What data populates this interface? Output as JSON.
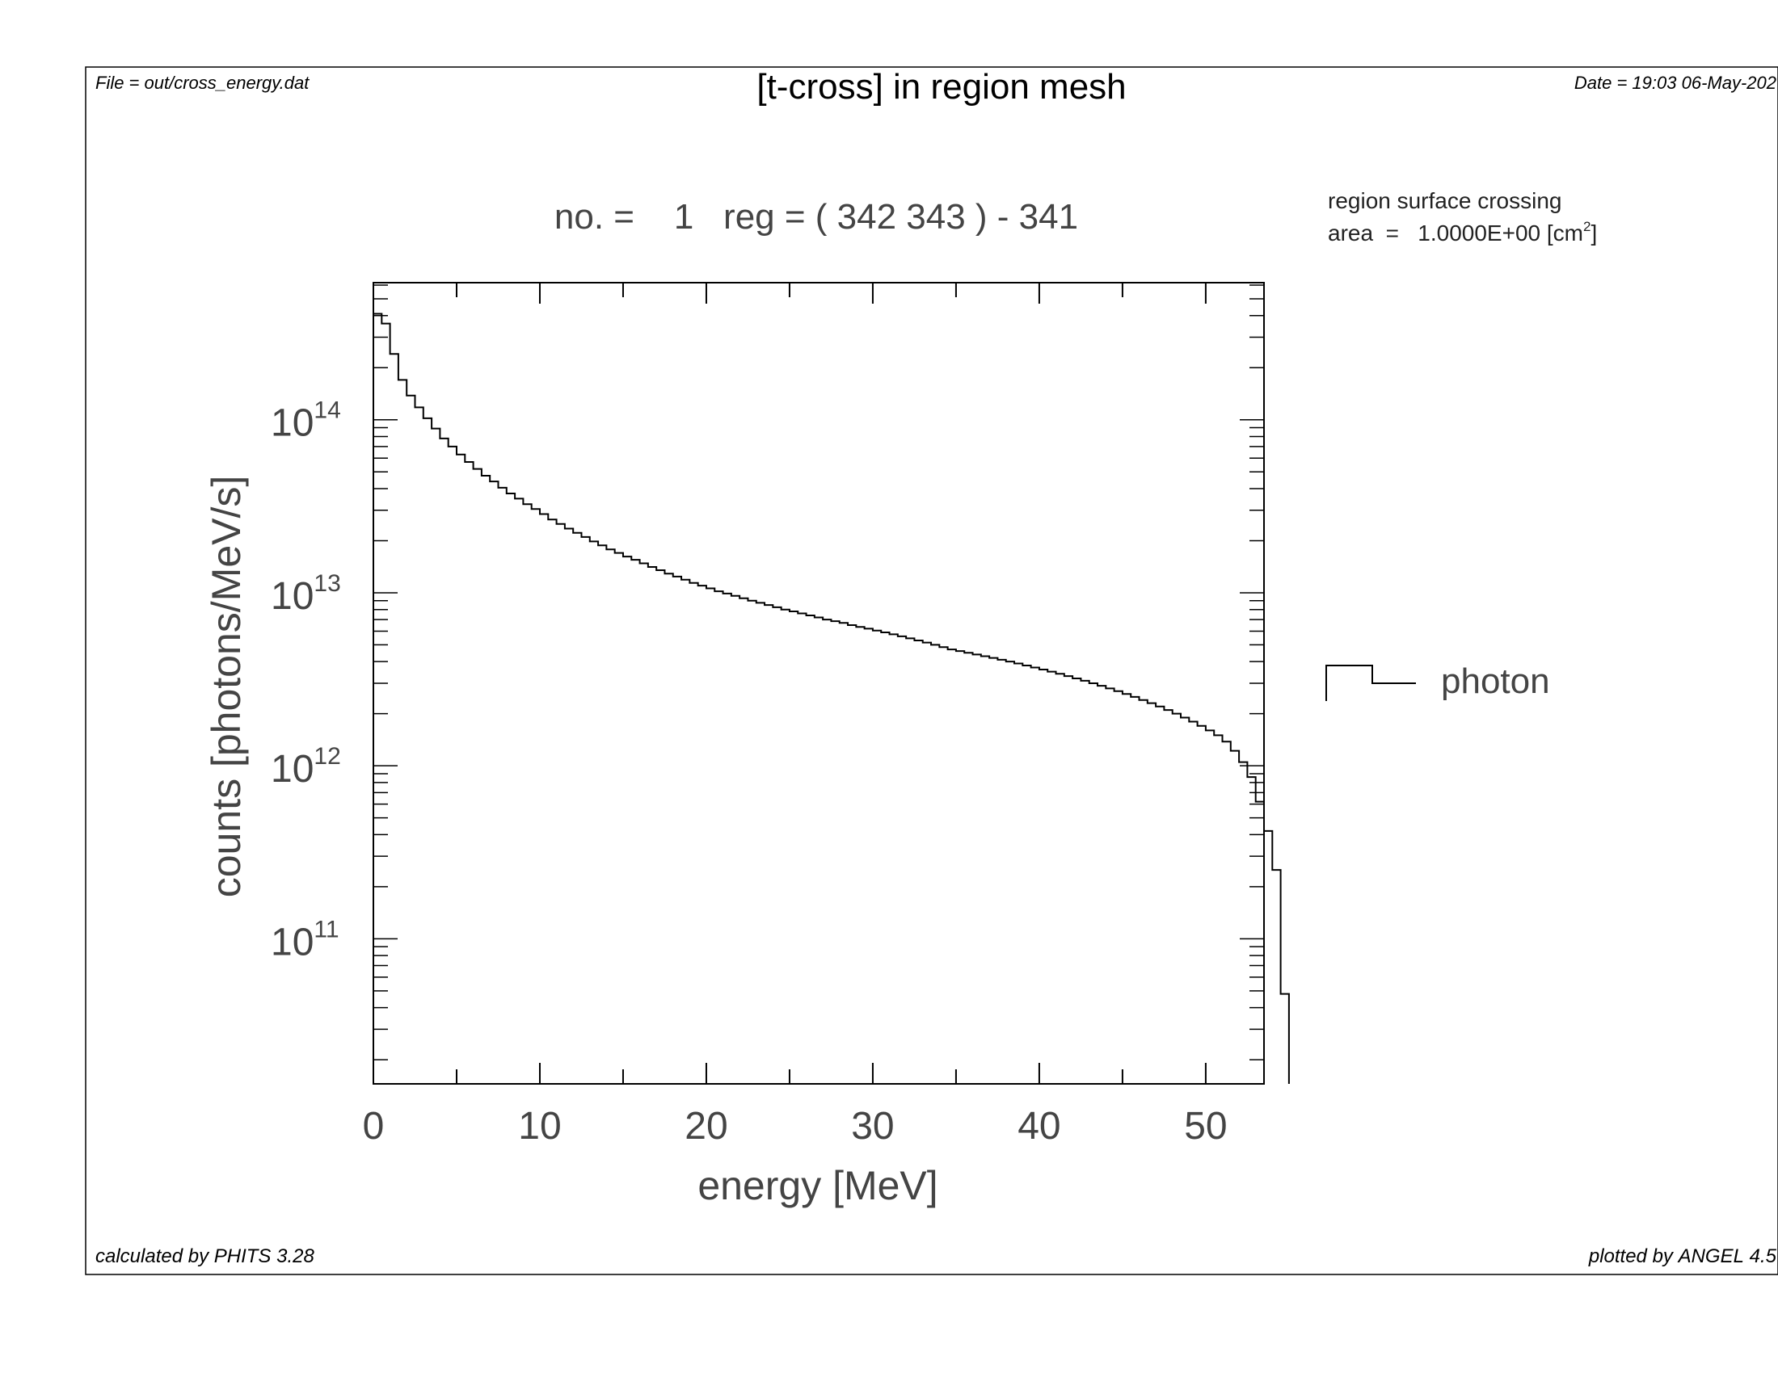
{
  "header": {
    "file_label": "File = out/cross_energy.dat",
    "title": "[t-cross] in region mesh",
    "date_label": "Date = 19:03 06-May-202"
  },
  "footer": {
    "calculated_prefix": "calculated by ",
    "calculated_code": "PHITS",
    "calculated_version": " 3.28",
    "plotted_prefix": "plotted by ",
    "plotted_code": "ANGEL",
    "plotted_version": " 4.5"
  },
  "info": {
    "line1": "region surface crossing",
    "line2_prefix": "area  =   1.0000E+00 [cm",
    "line2_sup": "2",
    "line2_suffix": "]"
  },
  "chart_data": {
    "type": "line",
    "title": "no. =    1   reg = ( 342 343 ) - 341",
    "xlabel": "energy [MeV]",
    "ylabel": "counts [photons/MeV/s]",
    "x_scale": "linear",
    "y_scale": "log",
    "xlim": [
      0,
      53.5
    ],
    "ylim": [
      14500000000.0,
      620000000000000.0
    ],
    "x_ticks": [
      0,
      10,
      20,
      30,
      40,
      50
    ],
    "y_ticks": [
      {
        "value": 100000000000.0,
        "base": "10",
        "exp": "11"
      },
      {
        "value": 1000000000000.0,
        "base": "10",
        "exp": "12"
      },
      {
        "value": 10000000000000.0,
        "base": "10",
        "exp": "13"
      },
      {
        "value": 100000000000000.0,
        "base": "10",
        "exp": "14"
      }
    ],
    "grid": false,
    "legend": {
      "position": "right",
      "entries": [
        {
          "label": "photon",
          "style": "histogram-step"
        }
      ]
    },
    "series": [
      {
        "name": "photon",
        "color": "#000000",
        "bin_width": 0.5,
        "bin_edges_start": 0,
        "values": [
          410000000000000.0,
          360000000000000.0,
          240000000000000.0,
          170000000000000.0,
          138000000000000.0,
          118000000000000.0,
          102000000000000.0,
          89000000000000.0,
          78000000000000.0,
          70000000000000.0,
          63000000000000.0,
          57000000000000.0,
          52000000000000.0,
          47500000000000.0,
          44000000000000.0,
          40500000000000.0,
          37500000000000.0,
          35000000000000.0,
          32500000000000.0,
          30500000000000.0,
          28500000000000.0,
          26500000000000.0,
          25000000000000.0,
          23500000000000.0,
          22200000000000.0,
          21000000000000.0,
          19800000000000.0,
          18800000000000.0,
          17800000000000.0,
          17000000000000.0,
          16200000000000.0,
          15500000000000.0,
          14800000000000.0,
          14100000000000.0,
          13500000000000.0,
          12900000000000.0,
          12400000000000.0,
          11900000000000.0,
          11400000000000.0,
          11000000000000.0,
          10600000000000.0,
          10200000000000.0,
          9900000000000.0,
          9600000000000.0,
          9300000000000.0,
          9000000000000.0,
          8750000000000.0,
          8500000000000.0,
          8250000000000.0,
          8000000000000.0,
          7800000000000.0,
          7600000000000.0,
          7400000000000.0,
          7200000000000.0,
          7000000000000.0,
          6850000000000.0,
          6700000000000.0,
          6500000000000.0,
          6350000000000.0,
          6200000000000.0,
          6050000000000.0,
          5900000000000.0,
          5750000000000.0,
          5600000000000.0,
          5450000000000.0,
          5300000000000.0,
          5150000000000.0,
          5000000000000.0,
          4850000000000.0,
          4700000000000.0,
          4600000000000.0,
          4500000000000.0,
          4400000000000.0,
          4300000000000.0,
          4200000000000.0,
          4100000000000.0,
          4000000000000.0,
          3900000000000.0,
          3800000000000.0,
          3700000000000.0,
          3600000000000.0,
          3500000000000.0,
          3400000000000.0,
          3300000000000.0,
          3200000000000.0,
          3100000000000.0,
          3000000000000.0,
          2900000000000.0,
          2800000000000.0,
          2700000000000.0,
          2600000000000.0,
          2500000000000.0,
          2400000000000.0,
          2300000000000.0,
          2200000000000.0,
          2100000000000.0,
          2000000000000.0,
          1900000000000.0,
          1800000000000.0,
          1700000000000.0,
          1600000000000.0,
          1500000000000.0,
          1380000000000.0,
          1220000000000.0,
          1050000000000.0,
          860000000000.0,
          620000000000.0,
          420000000000.0,
          250000000000.0,
          48000000000.0
        ]
      }
    ]
  }
}
